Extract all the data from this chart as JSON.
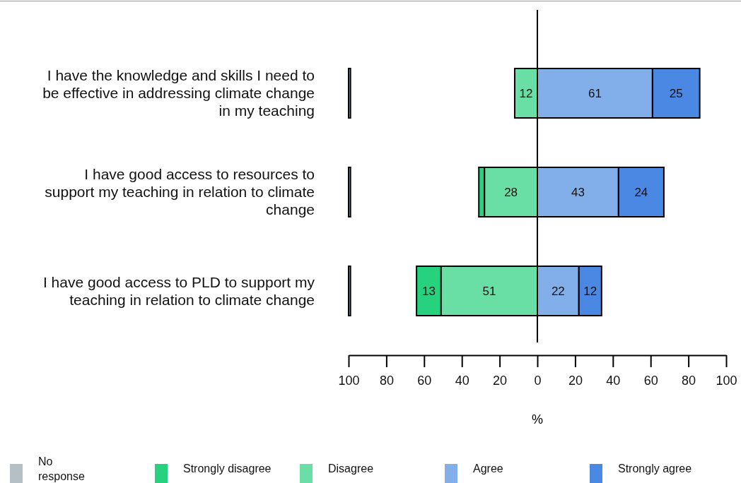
{
  "chart_data": {
    "type": "bar",
    "orientation": "horizontal",
    "categories": [
      "I have the knowledge and skills I need to be effective in addressing climate change in my teaching",
      "I have good access to resources to support my teaching in relation to climate change",
      "I have good access to PLD to support my teaching in relation to climate change"
    ],
    "series": [
      {
        "name": "No response",
        "color": "#b4bfc6",
        "values": [
          1,
          1,
          1
        ],
        "base": [
          -100,
          -100,
          -100
        ]
      },
      {
        "name": "Strongly disagree",
        "color": "#27d27f",
        "values": [
          null,
          3,
          13
        ],
        "base": [
          null,
          -31,
          -64
        ],
        "value_labels": [
          null,
          null,
          "13"
        ]
      },
      {
        "name": "Disagree",
        "color": "#6adfa5",
        "values": [
          12,
          28,
          51
        ],
        "base": [
          -12,
          -28,
          -51
        ],
        "value_labels": [
          "12",
          "28",
          "51"
        ]
      },
      {
        "name": "Agree",
        "color": "#82aeea",
        "values": [
          61,
          43,
          22
        ],
        "base": [
          0,
          0,
          0
        ],
        "value_labels": [
          "61",
          "43",
          "22"
        ]
      },
      {
        "name": "Strongly agree",
        "color": "#4b88e4",
        "values": [
          25,
          24,
          12
        ],
        "base": [
          61,
          43,
          22
        ],
        "value_labels": [
          "25",
          "24",
          "12"
        ]
      }
    ],
    "xlim": [
      -100,
      100
    ],
    "xticks": [
      {
        "value": -100,
        "label": "100"
      },
      {
        "value": -80,
        "label": "80"
      },
      {
        "value": -60,
        "label": "60"
      },
      {
        "value": -40,
        "label": "40"
      },
      {
        "value": -20,
        "label": "20"
      },
      0,
      20,
      40,
      60,
      80,
      100
    ],
    "xlabel": "%",
    "ref_lines": [
      {
        "axis": "x",
        "value": 0
      }
    ],
    "legend": "bottom",
    "grid": false
  }
}
